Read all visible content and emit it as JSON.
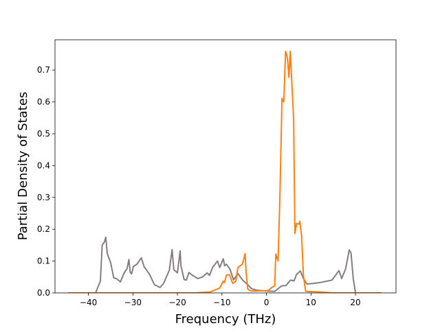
{
  "chart_data": {
    "type": "line",
    "title": "",
    "xlabel": "Frequency (THz)",
    "ylabel": "Partial Density of States",
    "xlim": [
      -47.5,
      29.1
    ],
    "ylim": [
      0,
      0.795
    ],
    "xticks": [
      -40,
      -30,
      -20,
      -10,
      0,
      10,
      20
    ],
    "yticks": [
      0.0,
      0.1,
      0.2,
      0.3,
      0.4,
      0.5,
      0.6,
      0.7
    ],
    "xtick_labels": [
      "−40",
      "−30",
      "−20",
      "−10",
      "0",
      "10",
      "20"
    ],
    "ytick_labels": [
      "0.0",
      "0.1",
      "0.2",
      "0.3",
      "0.4",
      "0.5",
      "0.6",
      "0.7"
    ],
    "grid": false,
    "legend": null,
    "series": [
      {
        "name": "gray",
        "color": "#857c82",
        "x": [
          -44.5,
          -38.5,
          -38.3,
          -37.3,
          -36.9,
          -36.4,
          -36.1,
          -35.75,
          -35.0,
          -34.3,
          -33.7,
          -32.8,
          -32.0,
          -31.3,
          -30.9,
          -30.6,
          -30.3,
          -29.9,
          -29.1,
          -28.1,
          -27.5,
          -26.2,
          -25.2,
          -23.9,
          -23.1,
          -21.8,
          -21.2,
          -20.8,
          -20.0,
          -19.4,
          -19.2,
          -18.5,
          -18.0,
          -17.4,
          -16.7,
          -15.4,
          -14.4,
          -13.3,
          -12.8,
          -12.1,
          -11.0,
          -10.5,
          -9.7,
          -9.4,
          -9.0,
          -8.2,
          -7.4,
          -6.4,
          -5.4,
          -4.3,
          -3.3,
          -2.0,
          0.0,
          1.85,
          3.4,
          4.4,
          5.4,
          6.2,
          6.75,
          7.6,
          8.3,
          9.1,
          10.6,
          12.2,
          14.7,
          16.3,
          16.9,
          17.8,
          18.6,
          19.0,
          19.5,
          20.0,
          25.8
        ],
        "y": [
          0,
          0,
          0.003,
          0.037,
          0.15,
          0.16,
          0.175,
          0.123,
          0.095,
          0.047,
          0.045,
          0.035,
          0.062,
          0.077,
          0.105,
          0.065,
          0.06,
          0.083,
          0.09,
          0.11,
          0.083,
          0.057,
          0.026,
          0.017,
          0.03,
          0.072,
          0.136,
          0.073,
          0.063,
          0.132,
          0.085,
          0.042,
          0.04,
          0.064,
          0.056,
          0.045,
          0.05,
          0.063,
          0.055,
          0.08,
          0.1,
          0.08,
          0.107,
          0.085,
          0.09,
          0.075,
          0.041,
          0.061,
          0.041,
          0.027,
          0.013,
          0.008,
          0.006,
          0.005,
          0.022,
          0.023,
          0.04,
          0.038,
          0.058,
          0.069,
          0.045,
          0.028,
          0.03,
          0.033,
          0.04,
          0.07,
          0.045,
          0.076,
          0.135,
          0.125,
          0.045,
          0,
          0
        ]
      },
      {
        "name": "orange",
        "color": "#ff7f0e",
        "x": [
          -44.5,
          -16.0,
          -12.6,
          -10.5,
          -9.7,
          -9.4,
          -9.0,
          -8.3,
          -7.6,
          -6.9,
          -6.4,
          -5.4,
          -4.8,
          -4.6,
          -4.2,
          -3.5,
          0.3,
          1.3,
          1.85,
          2.1,
          2.6,
          3.0,
          3.5,
          3.9,
          4.3,
          4.7,
          5.05,
          5.35,
          5.7,
          6.1,
          6.4,
          6.75,
          7.3,
          7.5,
          7.9,
          8.3,
          8.8,
          12.0,
          15.0,
          25.8
        ],
        "y": [
          0,
          0,
          0.003,
          0.015,
          0.037,
          0.033,
          0.056,
          0.057,
          0.03,
          0.036,
          0.08,
          0.09,
          0.123,
          0.07,
          0.012,
          0.006,
          0.007,
          0.018,
          0.022,
          0.122,
          0.1,
          0.288,
          0.611,
          0.6,
          0.759,
          0.74,
          0.677,
          0.759,
          0.66,
          0.547,
          0.187,
          0.218,
          0.216,
          0.225,
          0.18,
          0.055,
          0.005,
          0.003,
          0,
          0
        ]
      }
    ]
  }
}
